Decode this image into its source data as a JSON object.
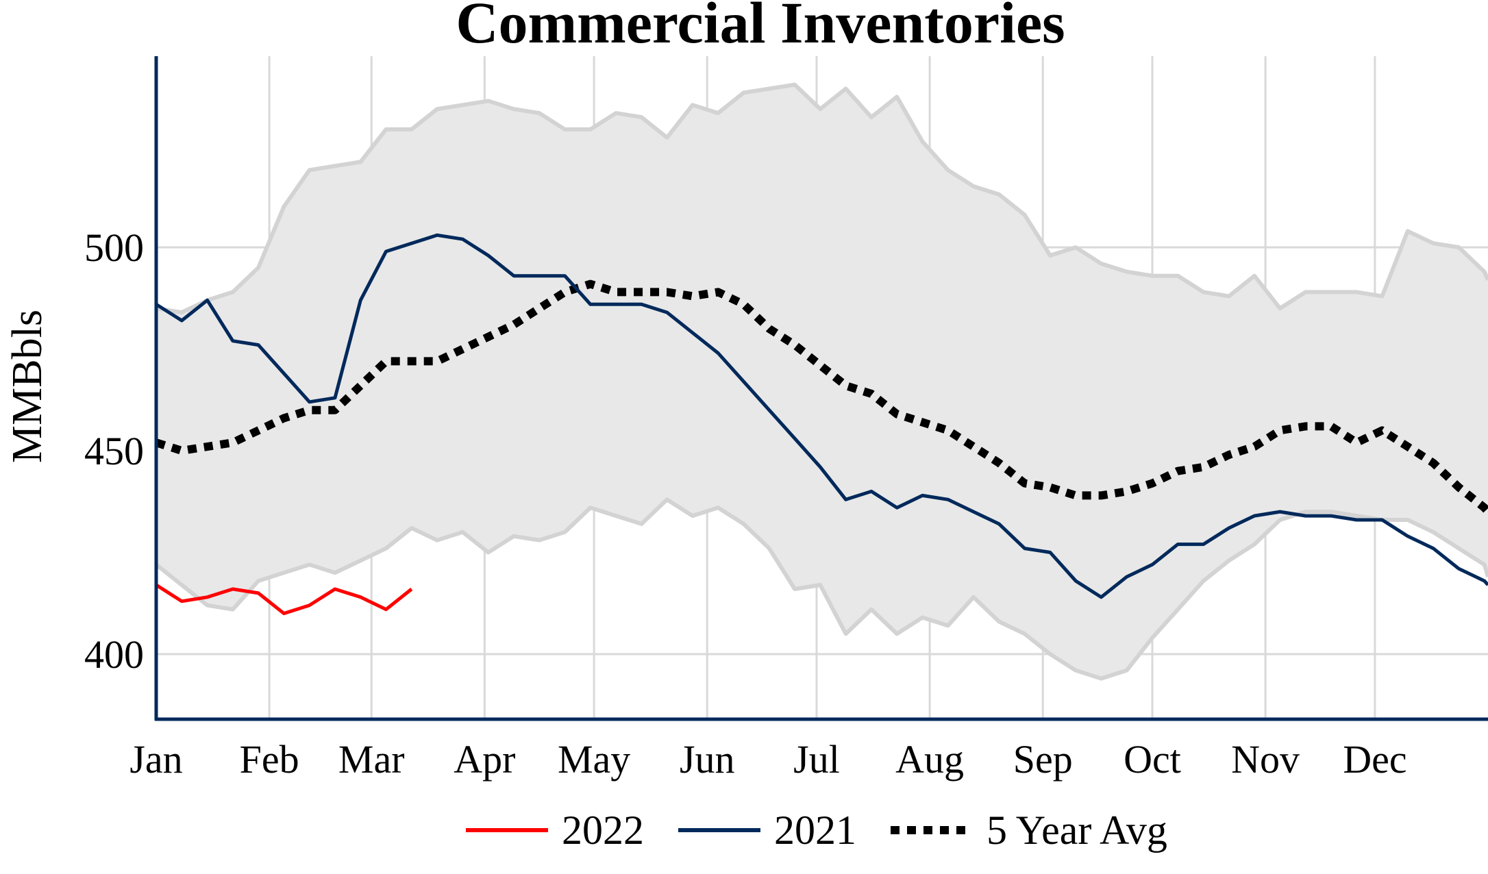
{
  "chart_data": {
    "type": "line",
    "title": "Commercial Inventories",
    "ylabel": "MMBbls",
    "xlabel": "",
    "ylim": [
      384,
      547
    ],
    "xlim": [
      0,
      365
    ],
    "grid": true,
    "legend_position": "bottom",
    "x_unit": "day of year",
    "x_ticks": [
      {
        "label": "Jan",
        "day": 0
      },
      {
        "label": "Feb",
        "day": 31
      },
      {
        "label": "Mar",
        "day": 59
      },
      {
        "label": "Apr",
        "day": 90
      },
      {
        "label": "May",
        "day": 120
      },
      {
        "label": "Jun",
        "day": 151
      },
      {
        "label": "Jul",
        "day": 181
      },
      {
        "label": "Aug",
        "day": 212
      },
      {
        "label": "Sep",
        "day": 243
      },
      {
        "label": "Oct",
        "day": 273
      },
      {
        "label": "Nov",
        "day": 304
      },
      {
        "label": "Dec",
        "day": 334
      }
    ],
    "y_ticks": [
      400,
      450,
      500
    ],
    "range_band": {
      "color": "#e8e8e8",
      "line_color": "#d3d3d3",
      "upper": [
        [
          0,
          485
        ],
        [
          7,
          484
        ],
        [
          14,
          487
        ],
        [
          21,
          489
        ],
        [
          28,
          495
        ],
        [
          35,
          510
        ],
        [
          42,
          519
        ],
        [
          49,
          520
        ],
        [
          56,
          521
        ],
        [
          63,
          529
        ],
        [
          70,
          529
        ],
        [
          77,
          534
        ],
        [
          84,
          535
        ],
        [
          91,
          536
        ],
        [
          98,
          534
        ],
        [
          105,
          533
        ],
        [
          112,
          529
        ],
        [
          119,
          529
        ],
        [
          126,
          533
        ],
        [
          133,
          532
        ],
        [
          140,
          527
        ],
        [
          147,
          535
        ],
        [
          154,
          533
        ],
        [
          161,
          538
        ],
        [
          168,
          539
        ],
        [
          175,
          540
        ],
        [
          182,
          534
        ],
        [
          189,
          539
        ],
        [
          196,
          532
        ],
        [
          203,
          537
        ],
        [
          210,
          526
        ],
        [
          217,
          519
        ],
        [
          224,
          515
        ],
        [
          231,
          513
        ],
        [
          238,
          508
        ],
        [
          245,
          498
        ],
        [
          252,
          500
        ],
        [
          259,
          496
        ],
        [
          266,
          494
        ],
        [
          273,
          493
        ],
        [
          280,
          493
        ],
        [
          287,
          489
        ],
        [
          294,
          488
        ],
        [
          301,
          493
        ],
        [
          308,
          485
        ],
        [
          315,
          489
        ],
        [
          322,
          489
        ],
        [
          329,
          489
        ],
        [
          336,
          488
        ],
        [
          343,
          504
        ],
        [
          350,
          501
        ],
        [
          357,
          500
        ],
        [
          364,
          494
        ],
        [
          365,
          492
        ]
      ],
      "lower": [
        [
          0,
          422
        ],
        [
          7,
          417
        ],
        [
          14,
          412
        ],
        [
          21,
          411
        ],
        [
          28,
          418
        ],
        [
          35,
          420
        ],
        [
          42,
          422
        ],
        [
          49,
          420
        ],
        [
          56,
          423
        ],
        [
          63,
          426
        ],
        [
          70,
          431
        ],
        [
          77,
          428
        ],
        [
          84,
          430
        ],
        [
          91,
          425
        ],
        [
          98,
          429
        ],
        [
          105,
          428
        ],
        [
          112,
          430
        ],
        [
          119,
          436
        ],
        [
          126,
          434
        ],
        [
          133,
          432
        ],
        [
          140,
          438
        ],
        [
          147,
          434
        ],
        [
          154,
          436
        ],
        [
          161,
          432
        ],
        [
          168,
          426
        ],
        [
          175,
          416
        ],
        [
          182,
          417
        ],
        [
          189,
          405
        ],
        [
          196,
          411
        ],
        [
          203,
          405
        ],
        [
          210,
          409
        ],
        [
          217,
          407
        ],
        [
          224,
          414
        ],
        [
          231,
          408
        ],
        [
          238,
          405
        ],
        [
          245,
          400
        ],
        [
          252,
          396
        ],
        [
          259,
          394
        ],
        [
          266,
          396
        ],
        [
          273,
          404
        ],
        [
          280,
          411
        ],
        [
          287,
          418
        ],
        [
          294,
          423
        ],
        [
          301,
          427
        ],
        [
          308,
          433
        ],
        [
          315,
          435
        ],
        [
          322,
          435
        ],
        [
          329,
          434
        ],
        [
          336,
          433
        ],
        [
          343,
          433
        ],
        [
          350,
          430
        ],
        [
          357,
          426
        ],
        [
          364,
          422
        ],
        [
          365,
          419
        ]
      ]
    },
    "series": [
      {
        "name": "2022",
        "color": "#ff0000",
        "style": "solid",
        "x": [
          0,
          7,
          14,
          21,
          28,
          35,
          42,
          49,
          56,
          63,
          70
        ],
        "values": [
          417,
          413,
          414,
          416,
          415,
          410,
          412,
          416,
          414,
          411,
          416
        ]
      },
      {
        "name": "2021",
        "color": "#00295b",
        "style": "solid",
        "x": [
          0,
          7,
          14,
          21,
          28,
          35,
          42,
          49,
          56,
          63,
          70,
          77,
          84,
          91,
          98,
          105,
          112,
          119,
          126,
          133,
          140,
          147,
          154,
          161,
          168,
          175,
          182,
          189,
          196,
          203,
          210,
          217,
          224,
          231,
          238,
          245,
          252,
          259,
          266,
          273,
          280,
          287,
          294,
          301,
          308,
          315,
          322,
          329,
          336,
          343,
          350,
          357,
          364,
          365
        ],
        "values": [
          486,
          482,
          487,
          477,
          476,
          469,
          462,
          463,
          487,
          499,
          501,
          503,
          502,
          498,
          493,
          493,
          493,
          486,
          486,
          486,
          484,
          479,
          474,
          467,
          460,
          453,
          446,
          438,
          440,
          436,
          439,
          438,
          435,
          432,
          426,
          425,
          418,
          414,
          419,
          422,
          427,
          427,
          431,
          434,
          435,
          434,
          434,
          433,
          433,
          429,
          426,
          421,
          418,
          417
        ]
      },
      {
        "name": "5 Year Avg",
        "color": "#000000",
        "style": "dotted",
        "x": [
          0,
          7,
          14,
          21,
          28,
          35,
          42,
          49,
          56,
          63,
          70,
          77,
          84,
          91,
          98,
          105,
          112,
          119,
          126,
          133,
          140,
          147,
          154,
          161,
          168,
          175,
          182,
          189,
          196,
          203,
          210,
          217,
          224,
          231,
          238,
          245,
          252,
          259,
          266,
          273,
          280,
          287,
          294,
          301,
          308,
          315,
          322,
          329,
          336,
          343,
          350,
          357,
          364,
          365
        ],
        "values": [
          452,
          450,
          451,
          452,
          455,
          458,
          460,
          460,
          466,
          472,
          472,
          472,
          475,
          478,
          481,
          485,
          489,
          491,
          489,
          489,
          489,
          488,
          489,
          486,
          480,
          476,
          471,
          466,
          464,
          459,
          457,
          455,
          451,
          447,
          442,
          441,
          439,
          439,
          440,
          442,
          445,
          446,
          449,
          451,
          455,
          456,
          456,
          452,
          455,
          451,
          447,
          441,
          436,
          435
        ]
      }
    ]
  }
}
